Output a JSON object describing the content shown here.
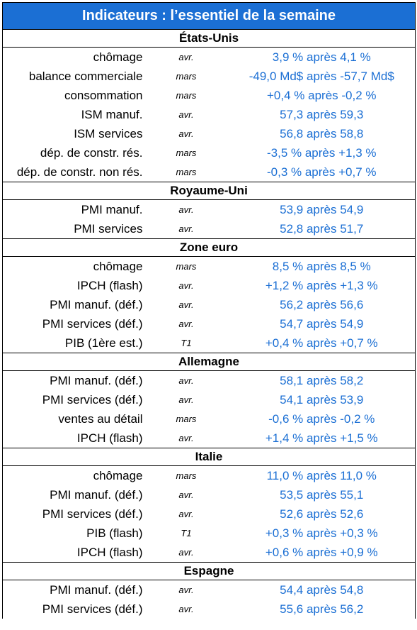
{
  "title": "Indicateurs : l’essentiel de la semaine",
  "sections": [
    {
      "name": "États-Unis",
      "rows": [
        {
          "label": "chômage",
          "period": "avr.",
          "value": "3,9 % après 4,1 %"
        },
        {
          "label": "balance commerciale",
          "period": "mars",
          "value": "-49,0 Md$ après -57,7 Md$"
        },
        {
          "label": "consommation",
          "period": "mars",
          "value": "+0,4 % après -0,2 %"
        },
        {
          "label": "ISM manuf.",
          "period": "avr.",
          "value": "57,3 après 59,3"
        },
        {
          "label": "ISM services",
          "period": "avr.",
          "value": "56,8 après 58,8"
        },
        {
          "label": "dép. de constr. rés.",
          "period": "mars",
          "value": "-3,5 % après +1,3 %"
        },
        {
          "label": "dép. de constr. non rés.",
          "period": "mars",
          "value": "-0,3 % après +0,7 %"
        }
      ]
    },
    {
      "name": "Royaume-Uni",
      "rows": [
        {
          "label": "PMI manuf.",
          "period": "avr.",
          "value": "53,9 après 54,9"
        },
        {
          "label": "PMI services",
          "period": "avr.",
          "value": "52,8 après 51,7"
        }
      ]
    },
    {
      "name": "Zone euro",
      "rows": [
        {
          "label": "chômage",
          "period": "mars",
          "value": "8,5 % après 8,5 %"
        },
        {
          "label": "IPCH (flash)",
          "period": "avr.",
          "value": "+1,2 % après +1,3 %"
        },
        {
          "label": "PMI manuf. (déf.)",
          "period": "avr.",
          "value": "56,2 après 56,6"
        },
        {
          "label": "PMI services (déf.)",
          "period": "avr.",
          "value": "54,7 après 54,9"
        },
        {
          "label": "PIB (1ère est.)",
          "period": "T1",
          "value": "+0,4 % après +0,7 %"
        }
      ]
    },
    {
      "name": "Allemagne",
      "rows": [
        {
          "label": "PMI manuf. (déf.)",
          "period": "avr.",
          "value": "58,1 après 58,2"
        },
        {
          "label": "PMI services (déf.)",
          "period": "avr.",
          "value": "54,1 après 53,9"
        },
        {
          "label": "ventes au détail",
          "period": "mars",
          "value": "-0,6 % après -0,2 %"
        },
        {
          "label": "IPCH (flash)",
          "period": "avr.",
          "value": "+1,4 % après +1,5 %"
        }
      ]
    },
    {
      "name": "Italie",
      "rows": [
        {
          "label": "chômage",
          "period": "mars",
          "value": "11,0 % après 11,0 %"
        },
        {
          "label": "PMI manuf. (déf.)",
          "period": "avr.",
          "value": "53,5 après 55,1"
        },
        {
          "label": "PMI services (déf.)",
          "period": "avr.",
          "value": "52,6 après 52,6"
        },
        {
          "label": "PIB (flash)",
          "period": "T1",
          "value": "+0,3 % après +0,3 %"
        },
        {
          "label": "IPCH (flash)",
          "period": "avr.",
          "value": "+0,6 % après +0,9 %"
        }
      ]
    },
    {
      "name": "Espagne",
      "rows": [
        {
          "label": "PMI manuf. (déf.)",
          "period": "avr.",
          "value": "54,4 après 54,8"
        },
        {
          "label": "PMI services (déf.)",
          "period": "avr.",
          "value": "55,6 après 56,2"
        }
      ]
    }
  ]
}
